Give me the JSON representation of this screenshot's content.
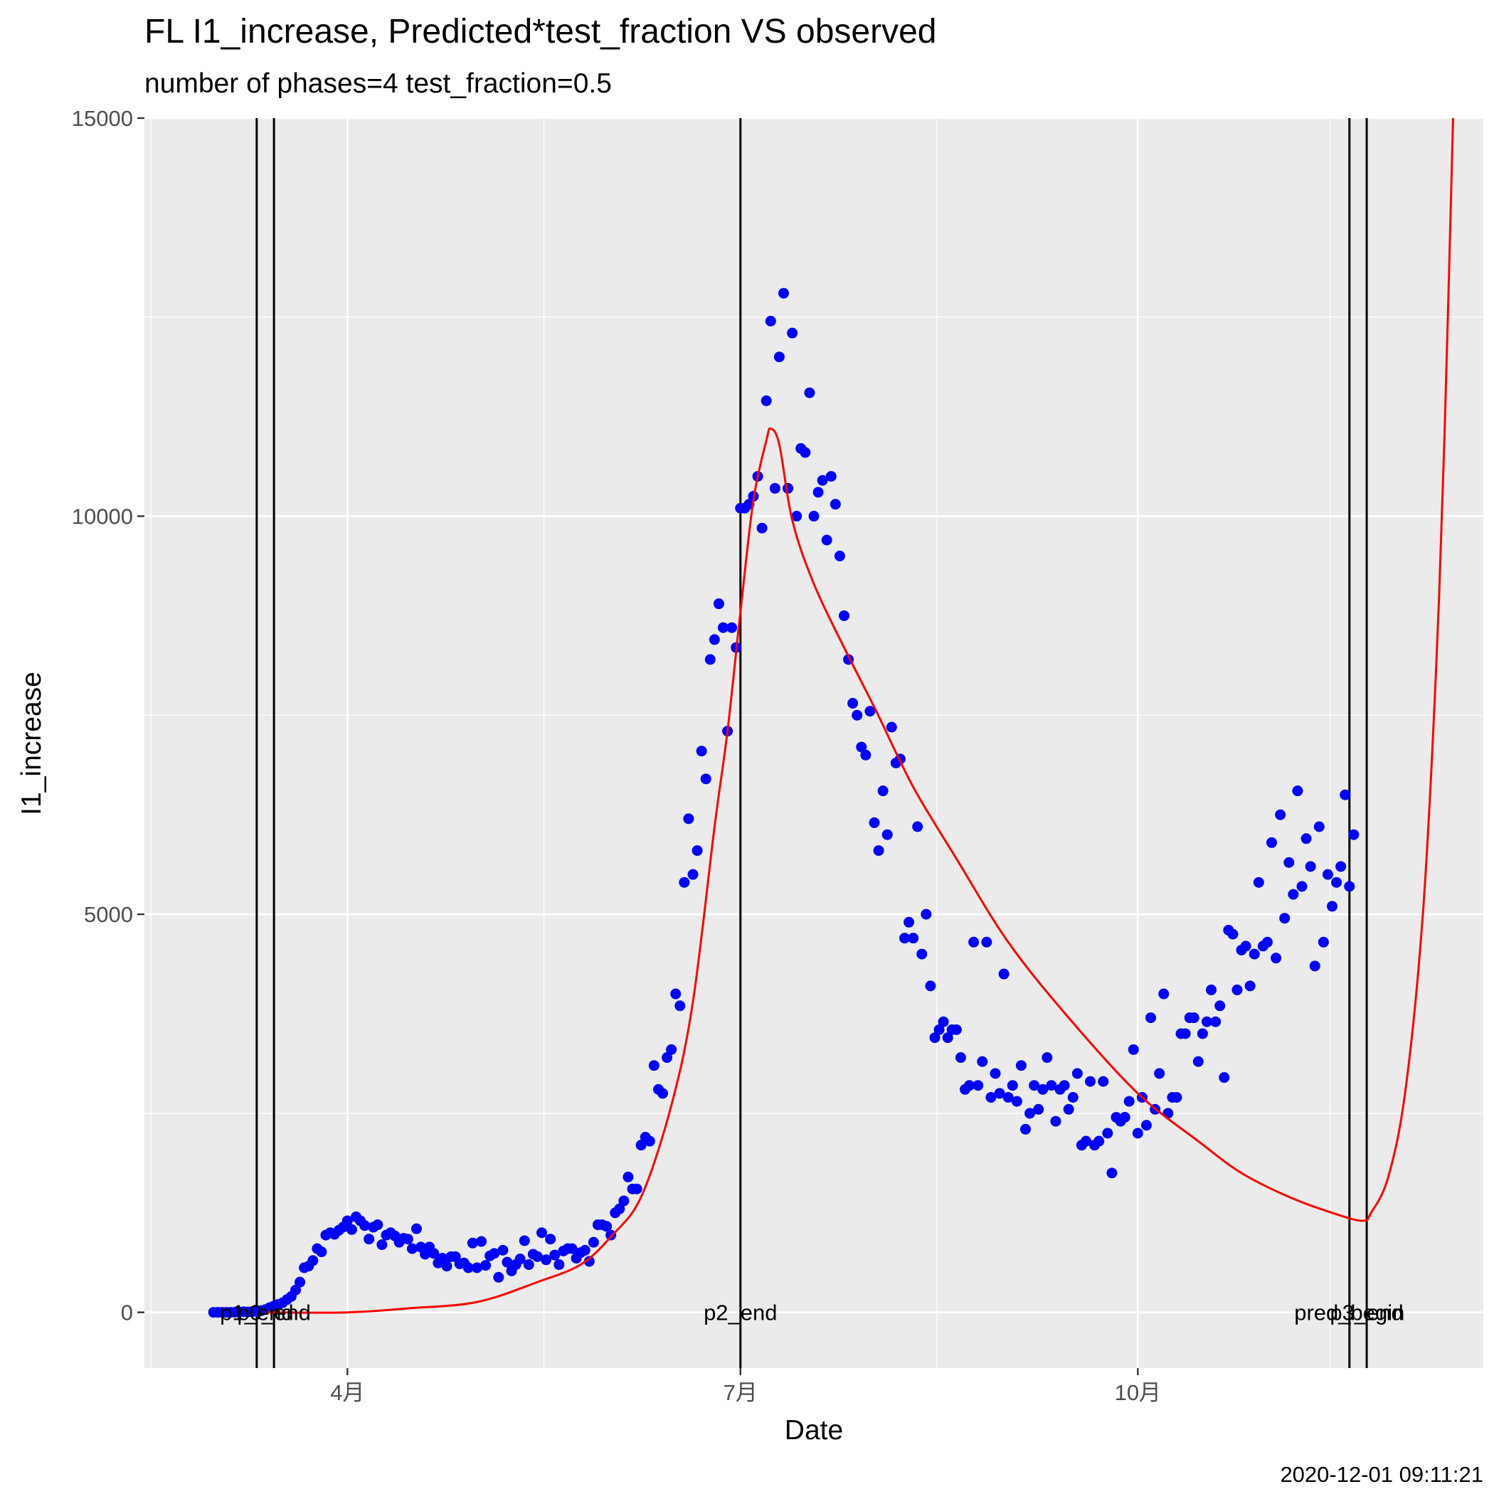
{
  "chart_data": {
    "type": "scatter",
    "title": "FL I1_increase, Predicted*test_fraction VS observed",
    "subtitle": "number of phases=4   test_fraction=0.5",
    "xlabel": "Date",
    "ylabel": "I1_increase",
    "caption": "2020-12-01 09:11:21",
    "xlim": [
      "2020-02-14",
      "2020-12-20"
    ],
    "ylim": [
      -700,
      15000
    ],
    "x_ticks": [
      {
        "date": "2020-04-01",
        "label": "4月"
      },
      {
        "date": "2020-07-01",
        "label": "7月"
      },
      {
        "date": "2020-10-01",
        "label": "10月"
      }
    ],
    "y_ticks": [
      0,
      5000,
      10000,
      15000
    ],
    "grid": true,
    "background": "#ebebeb",
    "colors": {
      "observed": "#0000ff",
      "predicted": "#ff0000",
      "phase_lines": "#000000"
    },
    "phase_lines": [
      {
        "date": "2020-03-11",
        "label": "p1_end"
      },
      {
        "date": "2020-03-15",
        "label": "p0_end"
      },
      {
        "date": "2020-07-01",
        "label": "p2_end"
      },
      {
        "date": "2020-11-19",
        "label": "pred_begin"
      },
      {
        "date": "2020-11-23",
        "label": "p3_end"
      }
    ],
    "observed": [
      [
        "2020-03-01",
        0
      ],
      [
        "2020-03-02",
        0
      ],
      [
        "2020-03-03",
        0
      ],
      [
        "2020-03-04",
        0
      ],
      [
        "2020-03-05",
        0
      ],
      [
        "2020-03-06",
        2
      ],
      [
        "2020-03-07",
        5
      ],
      [
        "2020-03-08",
        7
      ],
      [
        "2020-03-09",
        5
      ],
      [
        "2020-03-10",
        10
      ],
      [
        "2020-03-11",
        15
      ],
      [
        "2020-03-12",
        20
      ],
      [
        "2020-03-13",
        35
      ],
      [
        "2020-03-14",
        60
      ],
      [
        "2020-03-15",
        80
      ],
      [
        "2020-03-16",
        100
      ],
      [
        "2020-03-17",
        120
      ],
      [
        "2020-03-18",
        160
      ],
      [
        "2020-03-19",
        200
      ],
      [
        "2020-03-20",
        280
      ],
      [
        "2020-03-21",
        380
      ],
      [
        "2020-03-22",
        560
      ],
      [
        "2020-03-23",
        580
      ],
      [
        "2020-03-24",
        650
      ],
      [
        "2020-03-25",
        800
      ],
      [
        "2020-03-26",
        760
      ],
      [
        "2020-03-27",
        970
      ],
      [
        "2020-03-28",
        1000
      ],
      [
        "2020-03-29",
        980
      ],
      [
        "2020-03-30",
        1030
      ],
      [
        "2020-03-31",
        1070
      ],
      [
        "2020-04-01",
        1150
      ],
      [
        "2020-04-02",
        1040
      ],
      [
        "2020-04-03",
        1200
      ],
      [
        "2020-04-04",
        1150
      ],
      [
        "2020-04-05",
        1090
      ],
      [
        "2020-04-06",
        920
      ],
      [
        "2020-04-07",
        1070
      ],
      [
        "2020-04-08",
        1100
      ],
      [
        "2020-04-09",
        850
      ],
      [
        "2020-04-10",
        970
      ],
      [
        "2020-04-11",
        1000
      ],
      [
        "2020-04-12",
        960
      ],
      [
        "2020-04-13",
        880
      ],
      [
        "2020-04-14",
        930
      ],
      [
        "2020-04-15",
        920
      ],
      [
        "2020-04-16",
        800
      ],
      [
        "2020-04-17",
        1050
      ],
      [
        "2020-04-18",
        820
      ],
      [
        "2020-04-19",
        730
      ],
      [
        "2020-04-20",
        820
      ],
      [
        "2020-04-21",
        740
      ],
      [
        "2020-04-22",
        620
      ],
      [
        "2020-04-23",
        680
      ],
      [
        "2020-04-24",
        580
      ],
      [
        "2020-04-25",
        700
      ],
      [
        "2020-04-26",
        700
      ],
      [
        "2020-04-27",
        610
      ],
      [
        "2020-04-28",
        620
      ],
      [
        "2020-04-29",
        560
      ],
      [
        "2020-04-30",
        870
      ],
      [
        "2020-05-01",
        560
      ],
      [
        "2020-05-02",
        890
      ],
      [
        "2020-05-03",
        590
      ],
      [
        "2020-05-04",
        710
      ],
      [
        "2020-05-05",
        740
      ],
      [
        "2020-05-06",
        440
      ],
      [
        "2020-05-07",
        780
      ],
      [
        "2020-05-08",
        630
      ],
      [
        "2020-05-09",
        520
      ],
      [
        "2020-05-10",
        600
      ],
      [
        "2020-05-11",
        670
      ],
      [
        "2020-05-12",
        900
      ],
      [
        "2020-05-13",
        600
      ],
      [
        "2020-05-14",
        730
      ],
      [
        "2020-05-15",
        700
      ],
      [
        "2020-05-16",
        1000
      ],
      [
        "2020-05-17",
        660
      ],
      [
        "2020-05-18",
        920
      ],
      [
        "2020-05-19",
        720
      ],
      [
        "2020-05-20",
        600
      ],
      [
        "2020-05-21",
        770
      ],
      [
        "2020-05-22",
        800
      ],
      [
        "2020-05-23",
        800
      ],
      [
        "2020-05-24",
        680
      ],
      [
        "2020-05-25",
        750
      ],
      [
        "2020-05-26",
        780
      ],
      [
        "2020-05-27",
        640
      ],
      [
        "2020-05-28",
        880
      ],
      [
        "2020-05-29",
        1100
      ],
      [
        "2020-05-30",
        1100
      ],
      [
        "2020-05-31",
        1080
      ],
      [
        "2020-06-01",
        970
      ],
      [
        "2020-06-02",
        1250
      ],
      [
        "2020-06-03",
        1300
      ],
      [
        "2020-06-04",
        1400
      ],
      [
        "2020-06-05",
        1700
      ],
      [
        "2020-06-06",
        1550
      ],
      [
        "2020-06-07",
        1550
      ],
      [
        "2020-06-08",
        2100
      ],
      [
        "2020-06-09",
        2200
      ],
      [
        "2020-06-10",
        2150
      ],
      [
        "2020-06-11",
        3100
      ],
      [
        "2020-06-12",
        2800
      ],
      [
        "2020-06-13",
        2750
      ],
      [
        "2020-06-14",
        3200
      ],
      [
        "2020-06-15",
        3300
      ],
      [
        "2020-06-16",
        4000
      ],
      [
        "2020-06-17",
        3850
      ],
      [
        "2020-06-18",
        5400
      ],
      [
        "2020-06-19",
        6200
      ],
      [
        "2020-06-20",
        5500
      ],
      [
        "2020-06-21",
        5800
      ],
      [
        "2020-06-22",
        7050
      ],
      [
        "2020-06-23",
        6700
      ],
      [
        "2020-06-24",
        8200
      ],
      [
        "2020-06-25",
        8450
      ],
      [
        "2020-06-26",
        8900
      ],
      [
        "2020-06-27",
        8600
      ],
      [
        "2020-06-28",
        7300
      ],
      [
        "2020-06-29",
        8600
      ],
      [
        "2020-06-30",
        8350
      ],
      [
        "2020-07-01",
        10100
      ],
      [
        "2020-07-02",
        10100
      ],
      [
        "2020-07-03",
        10150
      ],
      [
        "2020-07-04",
        10250
      ],
      [
        "2020-07-05",
        10500
      ],
      [
        "2020-07-06",
        9850
      ],
      [
        "2020-07-07",
        11450
      ],
      [
        "2020-07-08",
        12450
      ],
      [
        "2020-07-09",
        10350
      ],
      [
        "2020-07-10",
        12000
      ],
      [
        "2020-07-11",
        12800
      ],
      [
        "2020-07-12",
        10350
      ],
      [
        "2020-07-13",
        12300
      ],
      [
        "2020-07-14",
        10000
      ],
      [
        "2020-07-15",
        10850
      ],
      [
        "2020-07-16",
        10800
      ],
      [
        "2020-07-17",
        11550
      ],
      [
        "2020-07-18",
        10000
      ],
      [
        "2020-07-19",
        10300
      ],
      [
        "2020-07-20",
        10450
      ],
      [
        "2020-07-21",
        9700
      ],
      [
        "2020-07-22",
        10500
      ],
      [
        "2020-07-23",
        10150
      ],
      [
        "2020-07-24",
        9500
      ],
      [
        "2020-07-25",
        8750
      ],
      [
        "2020-07-26",
        8200
      ],
      [
        "2020-07-27",
        7650
      ],
      [
        "2020-07-28",
        7500
      ],
      [
        "2020-07-29",
        7100
      ],
      [
        "2020-07-30",
        7000
      ],
      [
        "2020-07-31",
        7550
      ],
      [
        "2020-08-01",
        6150
      ],
      [
        "2020-08-02",
        5800
      ],
      [
        "2020-08-03",
        6550
      ],
      [
        "2020-08-04",
        6000
      ],
      [
        "2020-08-05",
        7350
      ],
      [
        "2020-08-06",
        6900
      ],
      [
        "2020-08-07",
        6950
      ],
      [
        "2020-08-08",
        4700
      ],
      [
        "2020-08-09",
        4900
      ],
      [
        "2020-08-10",
        4700
      ],
      [
        "2020-08-11",
        6100
      ],
      [
        "2020-08-12",
        4500
      ],
      [
        "2020-08-13",
        5000
      ],
      [
        "2020-08-14",
        4100
      ],
      [
        "2020-08-15",
        3450
      ],
      [
        "2020-08-16",
        3550
      ],
      [
        "2020-08-17",
        3650
      ],
      [
        "2020-08-18",
        3450
      ],
      [
        "2020-08-19",
        3550
      ],
      [
        "2020-08-20",
        3550
      ],
      [
        "2020-08-21",
        3200
      ],
      [
        "2020-08-22",
        2800
      ],
      [
        "2020-08-23",
        2850
      ],
      [
        "2020-08-24",
        4650
      ],
      [
        "2020-08-25",
        2850
      ],
      [
        "2020-08-26",
        3150
      ],
      [
        "2020-08-27",
        4650
      ],
      [
        "2020-08-28",
        2700
      ],
      [
        "2020-08-29",
        3000
      ],
      [
        "2020-08-30",
        2750
      ],
      [
        "2020-08-31",
        4250
      ],
      [
        "2020-09-01",
        2700
      ],
      [
        "2020-09-02",
        2850
      ],
      [
        "2020-09-03",
        2650
      ],
      [
        "2020-09-04",
        3100
      ],
      [
        "2020-09-05",
        2300
      ],
      [
        "2020-09-06",
        2500
      ],
      [
        "2020-09-07",
        2850
      ],
      [
        "2020-09-08",
        2550
      ],
      [
        "2020-09-09",
        2800
      ],
      [
        "2020-09-10",
        3200
      ],
      [
        "2020-09-11",
        2850
      ],
      [
        "2020-09-12",
        2400
      ],
      [
        "2020-09-13",
        2800
      ],
      [
        "2020-09-14",
        2850
      ],
      [
        "2020-09-15",
        2550
      ],
      [
        "2020-09-16",
        2700
      ],
      [
        "2020-09-17",
        3000
      ],
      [
        "2020-09-18",
        2100
      ],
      [
        "2020-09-19",
        2150
      ],
      [
        "2020-09-20",
        2900
      ],
      [
        "2020-09-21",
        2100
      ],
      [
        "2020-09-22",
        2150
      ],
      [
        "2020-09-23",
        2900
      ],
      [
        "2020-09-24",
        2250
      ],
      [
        "2020-09-25",
        1750
      ],
      [
        "2020-09-26",
        2450
      ],
      [
        "2020-09-27",
        2400
      ],
      [
        "2020-09-28",
        2450
      ],
      [
        "2020-09-29",
        2650
      ],
      [
        "2020-09-30",
        3300
      ],
      [
        "2020-10-01",
        2250
      ],
      [
        "2020-10-02",
        2700
      ],
      [
        "2020-10-03",
        2350
      ],
      [
        "2020-10-04",
        3700
      ],
      [
        "2020-10-05",
        2550
      ],
      [
        "2020-10-06",
        3000
      ],
      [
        "2020-10-07",
        4000
      ],
      [
        "2020-10-08",
        2500
      ],
      [
        "2020-10-09",
        2700
      ],
      [
        "2020-10-10",
        2700
      ],
      [
        "2020-10-11",
        3500
      ],
      [
        "2020-10-12",
        3500
      ],
      [
        "2020-10-13",
        3700
      ],
      [
        "2020-10-14",
        3700
      ],
      [
        "2020-10-15",
        3150
      ],
      [
        "2020-10-16",
        3500
      ],
      [
        "2020-10-17",
        3650
      ],
      [
        "2020-10-18",
        4050
      ],
      [
        "2020-10-19",
        3650
      ],
      [
        "2020-10-20",
        3850
      ],
      [
        "2020-10-21",
        2950
      ],
      [
        "2020-10-22",
        4800
      ],
      [
        "2020-10-23",
        4750
      ],
      [
        "2020-10-24",
        4050
      ],
      [
        "2020-10-25",
        4550
      ],
      [
        "2020-10-26",
        4600
      ],
      [
        "2020-10-27",
        4100
      ],
      [
        "2020-10-28",
        4500
      ],
      [
        "2020-10-29",
        5400
      ],
      [
        "2020-10-30",
        4600
      ],
      [
        "2020-10-31",
        4650
      ],
      [
        "2020-11-01",
        5900
      ],
      [
        "2020-11-02",
        4450
      ],
      [
        "2020-11-03",
        6250
      ],
      [
        "2020-11-04",
        4950
      ],
      [
        "2020-11-05",
        5650
      ],
      [
        "2020-11-06",
        5250
      ],
      [
        "2020-11-07",
        6550
      ],
      [
        "2020-11-08",
        5350
      ],
      [
        "2020-11-09",
        5950
      ],
      [
        "2020-11-10",
        5600
      ],
      [
        "2020-11-11",
        4350
      ],
      [
        "2020-11-12",
        6100
      ],
      [
        "2020-11-13",
        4650
      ],
      [
        "2020-11-14",
        5500
      ],
      [
        "2020-11-15",
        5100
      ],
      [
        "2020-11-16",
        5400
      ],
      [
        "2020-11-17",
        5600
      ],
      [
        "2020-11-18",
        6500
      ],
      [
        "2020-11-19",
        5350
      ],
      [
        "2020-11-20",
        6000
      ]
    ],
    "predicted": [
      [
        "2020-03-13",
        0
      ],
      [
        "2020-04-01",
        0
      ],
      [
        "2020-04-15",
        50
      ],
      [
        "2020-05-01",
        130
      ],
      [
        "2020-05-15",
        380
      ],
      [
        "2020-05-25",
        600
      ],
      [
        "2020-06-01",
        950
      ],
      [
        "2020-06-08",
        1450
      ],
      [
        "2020-06-15",
        2600
      ],
      [
        "2020-06-20",
        3900
      ],
      [
        "2020-06-25",
        6100
      ],
      [
        "2020-06-28",
        7300
      ],
      [
        "2020-07-01",
        8800
      ],
      [
        "2020-07-04",
        10200
      ],
      [
        "2020-07-07",
        10950
      ],
      [
        "2020-07-08",
        11100
      ],
      [
        "2020-07-10",
        10900
      ],
      [
        "2020-07-13",
        9950
      ],
      [
        "2020-07-18",
        9150
      ],
      [
        "2020-07-25",
        8350
      ],
      [
        "2020-08-01",
        7600
      ],
      [
        "2020-08-10",
        6600
      ],
      [
        "2020-08-20",
        5700
      ],
      [
        "2020-09-01",
        4650
      ],
      [
        "2020-09-15",
        3700
      ],
      [
        "2020-10-01",
        2750
      ],
      [
        "2020-10-15",
        2150
      ],
      [
        "2020-10-25",
        1750
      ],
      [
        "2020-11-05",
        1450
      ],
      [
        "2020-11-15",
        1250
      ],
      [
        "2020-11-22",
        1150
      ],
      [
        "2020-11-24",
        1250
      ],
      [
        "2020-11-28",
        1700
      ],
      [
        "2020-12-02",
        2800
      ],
      [
        "2020-12-06",
        5000
      ],
      [
        "2020-12-09",
        8000
      ],
      [
        "2020-12-11",
        11000
      ],
      [
        "2020-12-13",
        15000
      ]
    ]
  }
}
